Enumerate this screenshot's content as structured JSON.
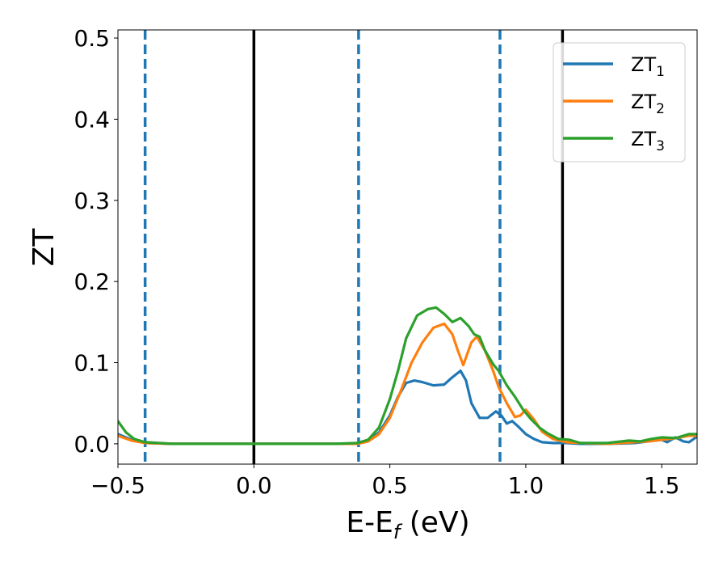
{
  "chart_data": {
    "type": "line",
    "xlabel": {
      "main": "E-E",
      "sub": "f",
      "rest": " (eV)"
    },
    "ylabel": "ZT",
    "xlim": [
      -0.5,
      1.63
    ],
    "ylim": [
      -0.025,
      0.51
    ],
    "x_ticks": [
      {
        "value": -0.5,
        "label": "−0.5"
      },
      {
        "value": 0.0,
        "label": "0.0"
      },
      {
        "value": 0.5,
        "label": "0.5"
      },
      {
        "value": 1.0,
        "label": "1.0"
      },
      {
        "value": 1.5,
        "label": "1.5"
      }
    ],
    "y_ticks": [
      {
        "value": 0.0,
        "label": "0.0"
      },
      {
        "value": 0.1,
        "label": "0.1"
      },
      {
        "value": 0.2,
        "label": "0.2"
      },
      {
        "value": 0.3,
        "label": "0.3"
      },
      {
        "value": 0.4,
        "label": "0.4"
      },
      {
        "value": 0.5,
        "label": "0.5"
      }
    ],
    "grid": false,
    "legend_position": "top-right",
    "vlines": [
      {
        "x": -0.4,
        "style": "dashed",
        "color": "#1f77b4"
      },
      {
        "x": 0.0,
        "style": "solid",
        "color": "#000000"
      },
      {
        "x": 0.385,
        "style": "dashed",
        "color": "#1f77b4"
      },
      {
        "x": 0.905,
        "style": "dashed",
        "color": "#1f77b4"
      },
      {
        "x": 1.135,
        "style": "solid",
        "color": "#000000"
      }
    ],
    "series": [
      {
        "name": "ZT",
        "name_sub": "1",
        "color": "#1f77b4",
        "x": [
          -0.5,
          -0.45,
          -0.4,
          -0.3,
          0.0,
          0.3,
          0.38,
          0.42,
          0.46,
          0.5,
          0.53,
          0.56,
          0.59,
          0.62,
          0.66,
          0.7,
          0.73,
          0.76,
          0.78,
          0.8,
          0.83,
          0.86,
          0.89,
          0.91,
          0.93,
          0.95,
          0.97,
          1.0,
          1.03,
          1.06,
          1.1,
          1.15,
          1.2,
          1.3,
          1.4,
          1.45,
          1.5,
          1.52,
          1.55,
          1.58,
          1.6,
          1.63
        ],
        "y": [
          0.012,
          0.005,
          0.001,
          0.0,
          0.0,
          0.0,
          0.0,
          0.004,
          0.014,
          0.035,
          0.058,
          0.075,
          0.078,
          0.076,
          0.072,
          0.073,
          0.082,
          0.09,
          0.078,
          0.05,
          0.032,
          0.032,
          0.04,
          0.035,
          0.025,
          0.028,
          0.022,
          0.012,
          0.006,
          0.002,
          0.001,
          0.001,
          0.0,
          0.0,
          0.001,
          0.003,
          0.005,
          0.002,
          0.008,
          0.003,
          0.002,
          0.009
        ]
      },
      {
        "name": "ZT",
        "name_sub": "2",
        "color": "#ff7f0e",
        "x": [
          -0.5,
          -0.45,
          -0.4,
          -0.3,
          0.0,
          0.3,
          0.38,
          0.42,
          0.46,
          0.5,
          0.54,
          0.58,
          0.62,
          0.66,
          0.7,
          0.73,
          0.75,
          0.77,
          0.8,
          0.82,
          0.85,
          0.88,
          0.9,
          0.93,
          0.96,
          0.98,
          1.0,
          1.03,
          1.06,
          1.1,
          1.15,
          1.2,
          1.3,
          1.4,
          1.45,
          1.5,
          1.55,
          1.6,
          1.63
        ],
        "y": [
          0.01,
          0.004,
          0.001,
          0.0,
          0.0,
          0.0,
          0.0,
          0.003,
          0.012,
          0.032,
          0.065,
          0.1,
          0.125,
          0.143,
          0.148,
          0.135,
          0.115,
          0.097,
          0.125,
          0.132,
          0.115,
          0.09,
          0.07,
          0.05,
          0.033,
          0.035,
          0.042,
          0.03,
          0.015,
          0.006,
          0.002,
          0.001,
          0.0,
          0.002,
          0.003,
          0.005,
          0.007,
          0.01,
          0.01
        ]
      },
      {
        "name": "ZT",
        "name_sub": "3",
        "color": "#2ca02c",
        "x": [
          -0.5,
          -0.47,
          -0.44,
          -0.4,
          -0.3,
          0.0,
          0.3,
          0.38,
          0.42,
          0.46,
          0.5,
          0.53,
          0.56,
          0.6,
          0.64,
          0.67,
          0.7,
          0.73,
          0.76,
          0.79,
          0.81,
          0.83,
          0.85,
          0.88,
          0.9,
          0.93,
          0.96,
          0.99,
          1.02,
          1.05,
          1.08,
          1.12,
          1.16,
          1.2,
          1.3,
          1.38,
          1.42,
          1.46,
          1.5,
          1.55,
          1.6,
          1.63
        ],
        "y": [
          0.028,
          0.014,
          0.006,
          0.002,
          0.0,
          0.0,
          0.0,
          0.001,
          0.005,
          0.02,
          0.055,
          0.09,
          0.13,
          0.158,
          0.166,
          0.168,
          0.16,
          0.15,
          0.155,
          0.145,
          0.135,
          0.132,
          0.115,
          0.098,
          0.09,
          0.072,
          0.058,
          0.042,
          0.03,
          0.02,
          0.013,
          0.006,
          0.005,
          0.001,
          0.001,
          0.004,
          0.003,
          0.006,
          0.008,
          0.007,
          0.012,
          0.012
        ]
      }
    ]
  }
}
